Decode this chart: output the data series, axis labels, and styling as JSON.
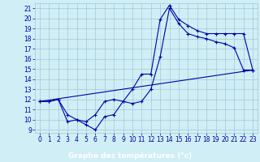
{
  "xlabel": "Graphe des températures (°c)",
  "xlim": [
    0,
    23
  ],
  "ylim": [
    9,
    21
  ],
  "yticks": [
    9,
    10,
    11,
    12,
    13,
    14,
    15,
    16,
    17,
    18,
    19,
    20,
    21
  ],
  "xticks": [
    0,
    1,
    2,
    3,
    4,
    5,
    6,
    7,
    8,
    9,
    10,
    11,
    12,
    13,
    14,
    15,
    16,
    17,
    18,
    19,
    20,
    21,
    22,
    23
  ],
  "bg_color": "#d0eef5",
  "grid_color": "#a0c8d8",
  "line_color": "#0000aa",
  "label_bg": "#0000aa",
  "label_fg": "#ffffff",
  "line1_x": [
    0,
    1,
    2,
    3,
    4,
    5,
    6,
    7,
    8,
    9,
    10,
    11,
    12,
    13,
    14,
    15,
    16,
    17,
    18,
    19,
    20,
    21,
    22,
    23
  ],
  "line1_y": [
    11.8,
    11.8,
    12.0,
    10.5,
    10.0,
    9.5,
    9.0,
    10.3,
    10.5,
    11.8,
    11.6,
    11.8,
    13.0,
    16.2,
    21.0,
    19.5,
    18.5,
    18.2,
    18.0,
    17.7,
    17.5,
    17.1,
    14.9,
    14.9
  ],
  "line2_x": [
    0,
    1,
    2,
    3,
    4,
    5,
    6,
    7,
    8,
    9,
    10,
    11,
    12,
    13,
    14,
    15,
    16,
    17,
    18,
    19,
    20,
    21,
    22,
    23
  ],
  "line2_y": [
    11.8,
    11.8,
    12.0,
    9.8,
    10.0,
    9.8,
    10.5,
    11.8,
    12.0,
    11.8,
    13.0,
    14.5,
    14.5,
    19.9,
    21.3,
    19.9,
    19.3,
    18.8,
    18.5,
    18.5,
    18.5,
    18.5,
    18.5,
    14.9
  ],
  "line3_x": [
    0,
    23
  ],
  "line3_y": [
    11.8,
    14.9
  ],
  "font_color": "#0000aa",
  "tick_fontsize": 5.5,
  "marker_size": 3,
  "linewidth": 0.8
}
